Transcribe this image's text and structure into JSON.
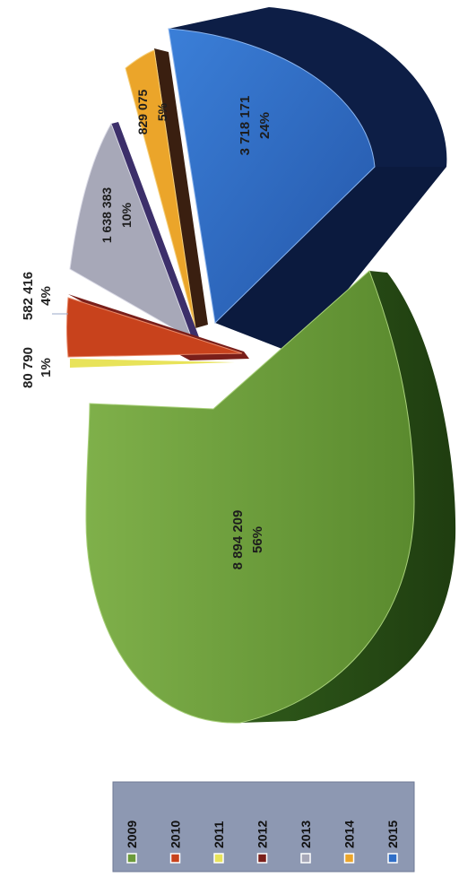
{
  "chart_data": {
    "type": "pie",
    "categories": [
      "2009",
      "2010",
      "2011",
      "2012",
      "2013",
      "2014",
      "2015"
    ],
    "values": [
      8894209,
      582416,
      80790,
      0,
      1638383,
      829075,
      3718171
    ],
    "percent_labels": [
      "56%",
      "4%",
      "1%",
      "",
      "10%",
      "5%",
      "24%"
    ],
    "value_labels": [
      "8 894 209",
      "582 416",
      "80 790",
      "",
      "1 638 383",
      "829 075",
      "3 718 171"
    ],
    "colors": [
      "#6b9a3a",
      "#c8421c",
      "#e8e35a",
      "#7a1f1a",
      "#a7a8b8",
      "#eba52a",
      "#2f6ec7"
    ],
    "legend": {
      "entries": [
        "2009",
        "2010",
        "2011",
        "2012",
        "2013",
        "2014",
        "2015"
      ],
      "placement": "bottom"
    }
  }
}
